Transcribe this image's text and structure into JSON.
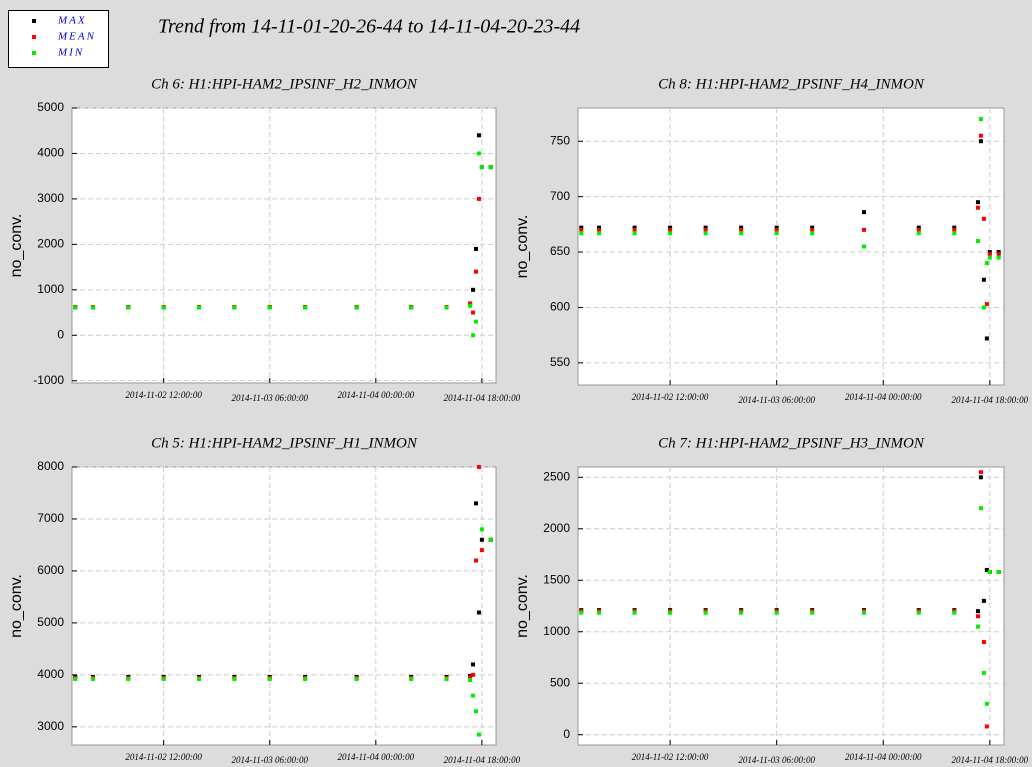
{
  "title": "Trend from 14-11-01-20-26-44 to 14-11-04-20-23-44",
  "chart_data": [
    {
      "type": "scatter",
      "title": "Ch 6: H1:HPI-HAM2_IPSINF_H2_INMON",
      "ylabel": "no_conv.",
      "x": [
        "2014-11-01 21:00:00",
        "2014-11-02 00:00:00",
        "2014-11-02 06:00:00",
        "2014-11-02 12:00:00",
        "2014-11-02 18:00:00",
        "2014-11-03 00:00:00",
        "2014-11-03 06:00:00",
        "2014-11-03 12:00:00",
        "2014-11-03 20:45:00",
        "2014-11-04 06:00:00",
        "2014-11-04 12:00:00",
        "2014-11-04 16:00:00",
        "2014-11-04 16:30:00",
        "2014-11-04 17:00:00",
        "2014-11-04 17:30:00",
        "2014-11-04 18:00:00",
        "2014-11-04 19:30:00"
      ],
      "series": [
        {
          "name": "MAX",
          "color": "#000000",
          "values": [
            620,
            620,
            620,
            620,
            620,
            620,
            620,
            620,
            620,
            620,
            620,
            700,
            1000,
            1900,
            4400,
            3700,
            3700
          ]
        },
        {
          "name": "MEAN",
          "color": "#ff0000",
          "values": [
            620,
            620,
            620,
            620,
            620,
            620,
            620,
            620,
            620,
            620,
            620,
            700,
            500,
            1400,
            3000,
            3700,
            3700
          ]
        },
        {
          "name": "MIN",
          "color": "#00ee00",
          "values": [
            610,
            610,
            610,
            610,
            610,
            610,
            610,
            610,
            610,
            610,
            610,
            650,
            0,
            300,
            4000,
            3700,
            3700
          ]
        }
      ],
      "xlim": [
        "2014-11-01 20:26:44",
        "2014-11-04 20:23:44"
      ],
      "xticks": [
        "2014-11-02 12:00:00",
        "2014-11-03 06:00:00",
        "2014-11-04 00:00:00",
        "2014-11-04 18:00:00"
      ],
      "ylim": [
        -1050,
        5000
      ],
      "yticks": [
        -1000,
        0,
        1000,
        2000,
        3000,
        4000,
        5000
      ],
      "grid": true
    },
    {
      "type": "scatter",
      "title": "Ch 8: H1:HPI-HAM2_IPSINF_H4_INMON",
      "ylabel": "no_conv.",
      "x": [
        "2014-11-01 21:00:00",
        "2014-11-02 00:00:00",
        "2014-11-02 06:00:00",
        "2014-11-02 12:00:00",
        "2014-11-02 18:00:00",
        "2014-11-03 00:00:00",
        "2014-11-03 06:00:00",
        "2014-11-03 12:00:00",
        "2014-11-03 20:45:00",
        "2014-11-04 06:00:00",
        "2014-11-04 12:00:00",
        "2014-11-04 16:00:00",
        "2014-11-04 16:30:00",
        "2014-11-04 17:00:00",
        "2014-11-04 17:30:00",
        "2014-11-04 18:00:00",
        "2014-11-04 19:30:00"
      ],
      "series": [
        {
          "name": "MAX",
          "color": "#000000",
          "values": [
            672,
            672,
            672,
            672,
            672,
            672,
            672,
            672,
            686,
            672,
            672,
            695,
            750,
            625,
            572,
            650,
            650
          ]
        },
        {
          "name": "MEAN",
          "color": "#ff0000",
          "values": [
            670,
            670,
            670,
            670,
            670,
            670,
            670,
            670,
            670,
            670,
            670,
            690,
            755,
            680,
            603,
            648,
            648
          ]
        },
        {
          "name": "MIN",
          "color": "#00ee00",
          "values": [
            667,
            667,
            667,
            667,
            667,
            667,
            667,
            667,
            655,
            667,
            667,
            660,
            770,
            600,
            640,
            645,
            645
          ]
        }
      ],
      "xlim": [
        "2014-11-01 20:26:44",
        "2014-11-04 20:23:44"
      ],
      "xticks": [
        "2014-11-02 12:00:00",
        "2014-11-03 06:00:00",
        "2014-11-04 00:00:00",
        "2014-11-04 18:00:00"
      ],
      "ylim": [
        530,
        780
      ],
      "yticks": [
        550,
        600,
        650,
        700,
        750
      ],
      "grid": true
    },
    {
      "type": "scatter",
      "title": "Ch 5: H1:HPI-HAM2_IPSINF_H1_INMON",
      "ylabel": "no_conv.",
      "x": [
        "2014-11-01 21:00:00",
        "2014-11-02 00:00:00",
        "2014-11-02 06:00:00",
        "2014-11-02 12:00:00",
        "2014-11-02 18:00:00",
        "2014-11-03 00:00:00",
        "2014-11-03 06:00:00",
        "2014-11-03 12:00:00",
        "2014-11-03 20:45:00",
        "2014-11-04 06:00:00",
        "2014-11-04 12:00:00",
        "2014-11-04 16:00:00",
        "2014-11-04 16:30:00",
        "2014-11-04 17:00:00",
        "2014-11-04 17:30:00",
        "2014-11-04 18:00:00",
        "2014-11-04 19:30:00"
      ],
      "series": [
        {
          "name": "MAX",
          "color": "#000000",
          "values": [
            3960,
            3960,
            3960,
            3960,
            3960,
            3960,
            3960,
            3960,
            3960,
            3960,
            3960,
            3980,
            4200,
            7300,
            5200,
            6600,
            6600
          ]
        },
        {
          "name": "MEAN",
          "color": "#ff0000",
          "values": [
            3940,
            3940,
            3940,
            3940,
            3940,
            3940,
            3940,
            3940,
            3940,
            3940,
            3940,
            3950,
            4000,
            6200,
            8000,
            6400,
            6600
          ]
        },
        {
          "name": "MIN",
          "color": "#00ee00",
          "values": [
            3920,
            3920,
            3920,
            3920,
            3920,
            3920,
            3920,
            3920,
            3920,
            3920,
            3920,
            3900,
            3600,
            3300,
            2850,
            6800,
            6600
          ]
        }
      ],
      "xlim": [
        "2014-11-01 20:26:44",
        "2014-11-04 20:23:44"
      ],
      "xticks": [
        "2014-11-02 12:00:00",
        "2014-11-03 06:00:00",
        "2014-11-04 00:00:00",
        "2014-11-04 18:00:00"
      ],
      "ylim": [
        2650,
        8000
      ],
      "yticks": [
        3000,
        4000,
        5000,
        6000,
        7000,
        8000
      ],
      "grid": true
    },
    {
      "type": "scatter",
      "title": "Ch 7: H1:HPI-HAM2_IPSINF_H3_INMON",
      "ylabel": "no_conv.",
      "x": [
        "2014-11-01 21:00:00",
        "2014-11-02 00:00:00",
        "2014-11-02 06:00:00",
        "2014-11-02 12:00:00",
        "2014-11-02 18:00:00",
        "2014-11-03 00:00:00",
        "2014-11-03 06:00:00",
        "2014-11-03 12:00:00",
        "2014-11-03 20:45:00",
        "2014-11-04 06:00:00",
        "2014-11-04 12:00:00",
        "2014-11-04 16:00:00",
        "2014-11-04 16:30:00",
        "2014-11-04 17:00:00",
        "2014-11-04 17:30:00",
        "2014-11-04 18:00:00",
        "2014-11-04 19:30:00"
      ],
      "series": [
        {
          "name": "MAX",
          "color": "#000000",
          "values": [
            1210,
            1210,
            1210,
            1210,
            1210,
            1210,
            1210,
            1210,
            1210,
            1210,
            1210,
            1200,
            2500,
            1300,
            1600,
            1580,
            1580
          ]
        },
        {
          "name": "MEAN",
          "color": "#ff0000",
          "values": [
            1200,
            1200,
            1200,
            1200,
            1200,
            1200,
            1200,
            1200,
            1200,
            1200,
            1200,
            1150,
            2550,
            900,
            80,
            1580,
            1580
          ]
        },
        {
          "name": "MIN",
          "color": "#00ee00",
          "values": [
            1185,
            1185,
            1185,
            1185,
            1185,
            1185,
            1185,
            1185,
            1185,
            1185,
            1185,
            1050,
            2200,
            600,
            300,
            1580,
            1580
          ]
        }
      ],
      "xlim": [
        "2014-11-01 20:26:44",
        "2014-11-04 20:23:44"
      ],
      "xticks": [
        "2014-11-02 12:00:00",
        "2014-11-03 06:00:00",
        "2014-11-04 00:00:00",
        "2014-11-04 18:00:00"
      ],
      "ylim": [
        -100,
        2600
      ],
      "yticks": [
        0,
        500,
        1000,
        1500,
        2000,
        2500
      ],
      "grid": true
    }
  ]
}
